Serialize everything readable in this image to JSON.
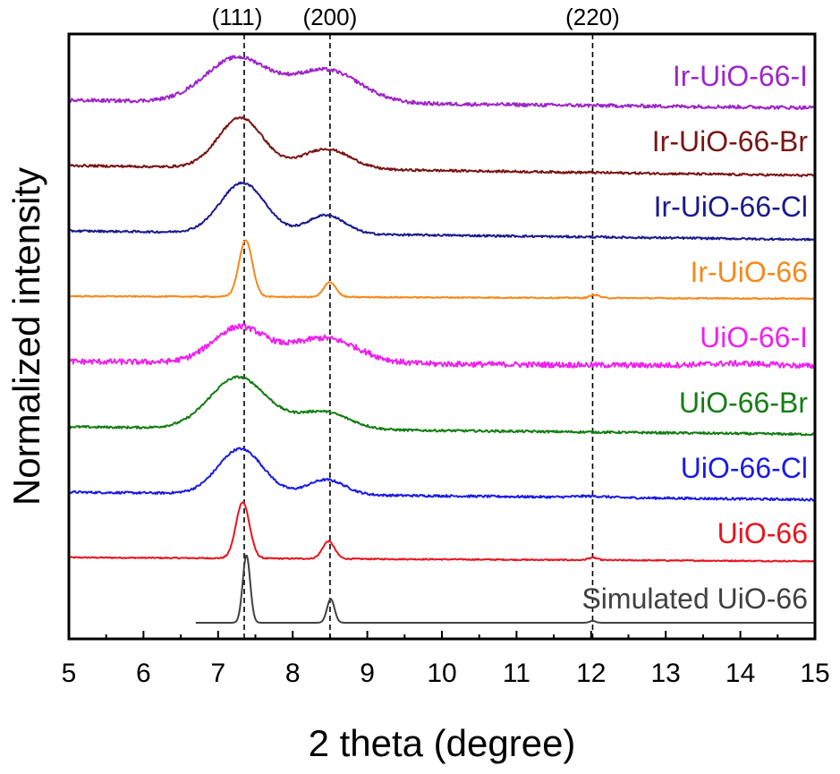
{
  "chart_data": {
    "type": "line",
    "xlabel": "2 theta (degree)",
    "ylabel": "Normalized intensity",
    "xlim": [
      5,
      15
    ],
    "xticks": [
      5,
      6,
      7,
      8,
      9,
      10,
      11,
      12,
      13,
      14,
      15
    ],
    "y_ticks_shown": false,
    "grid": false,
    "legend": "inline labels at right end of each trace",
    "reference_lines": [
      {
        "x": 7.35,
        "label": "(111)"
      },
      {
        "x": 8.5,
        "label": "(200)"
      },
      {
        "x": 12.02,
        "label": "(220)"
      }
    ],
    "series": [
      {
        "name": "Simulated UiO-66",
        "color": "#404040",
        "baseline": 0,
        "peaks": [
          [
            7.38,
            5.4,
            0.05
          ],
          [
            8.51,
            1.9,
            0.05
          ],
          [
            12.02,
            0.15,
            0.04
          ]
        ],
        "noise": 0,
        "slope": 0
      },
      {
        "name": "UiO-66",
        "color": "#e8141e",
        "baseline": 1,
        "peaks": [
          [
            7.33,
            4.5,
            0.09
          ],
          [
            8.48,
            1.4,
            0.08
          ],
          [
            12.02,
            0.2,
            0.06
          ]
        ],
        "noise": 0.05,
        "slope": -0.03
      },
      {
        "name": "UiO-66-Cl",
        "color": "#1a1ae6",
        "baseline": 2,
        "peaks": [
          [
            7.3,
            3.6,
            0.3
          ],
          [
            8.45,
            1.2,
            0.25
          ],
          [
            12.0,
            0.1,
            0.2
          ]
        ],
        "noise": 0.09,
        "slope": -0.06
      },
      {
        "name": "UiO-66-Br",
        "color": "#137d13",
        "baseline": 3,
        "peaks": [
          [
            7.27,
            4.1,
            0.38
          ],
          [
            8.4,
            1.4,
            0.35
          ]
        ],
        "noise": 0.09,
        "slope": -0.06
      },
      {
        "name": "UiO-66-I",
        "color": "#ee22ee",
        "baseline": 4,
        "peaks": [
          [
            7.28,
            2.8,
            0.35
          ],
          [
            8.42,
            2.0,
            0.45
          ],
          [
            14.0,
            0.2,
            0.5
          ]
        ],
        "noise": 0.22,
        "slope": -0.04
      },
      {
        "name": "Ir-UiO-66",
        "color": "#f5891a",
        "baseline": 5,
        "peaks": [
          [
            7.37,
            4.5,
            0.09
          ],
          [
            8.5,
            1.2,
            0.08
          ],
          [
            12.05,
            0.25,
            0.06
          ]
        ],
        "noise": 0.05,
        "slope": -0.02
      },
      {
        "name": "Ir-UiO-66-Cl",
        "color": "#1a1a8c",
        "baseline": 6,
        "peaks": [
          [
            7.33,
            4.0,
            0.3
          ],
          [
            8.45,
            1.5,
            0.25
          ]
        ],
        "noise": 0.08,
        "slope": -0.07
      },
      {
        "name": "Ir-UiO-66-Br",
        "color": "#7a1414",
        "baseline": 7,
        "peaks": [
          [
            7.3,
            4.0,
            0.3
          ],
          [
            8.45,
            1.6,
            0.32
          ]
        ],
        "noise": 0.09,
        "slope": -0.08
      },
      {
        "name": "Ir-UiO-66-I",
        "color": "#9e26c8",
        "baseline": 8,
        "peaks": [
          [
            7.25,
            3.5,
            0.42
          ],
          [
            8.45,
            2.6,
            0.45
          ]
        ],
        "noise": 0.14,
        "slope": -0.06
      }
    ]
  }
}
